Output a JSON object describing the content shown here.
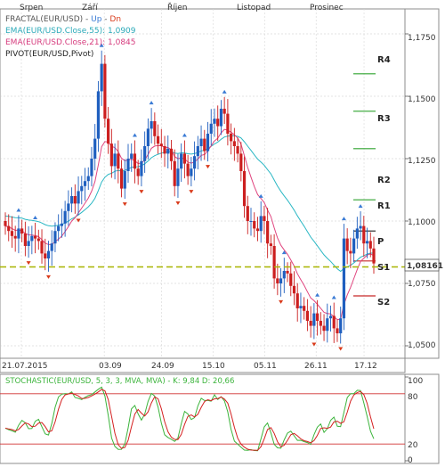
{
  "legend": {
    "fractal": "FRACTAL(EUR/USD) - ",
    "fractal_up": "Up",
    "fractal_dn": "Dn",
    "ema55": "EMA(EUR/USD.Close,55): 1,0909",
    "ema21": "EMA(EUR/USD.Close,21): 1,0845",
    "pivot": "PIVOT(EUR/USD,Pivot)"
  },
  "months": [
    "Srpen",
    "Září",
    "Říjen",
    "Listopad",
    "Prosinec"
  ],
  "dates": [
    "21.07.2015",
    "03.09",
    "24.09",
    "15.10",
    "05.11",
    "26.11",
    "17.12"
  ],
  "price_ticks": [
    "1,1750",
    "1,1500",
    "1,1250",
    "1,1000",
    "1,0750",
    "1,0500"
  ],
  "current_price": "1,08161",
  "pivot_labels": [
    "R4",
    "R3",
    "R2",
    "R1",
    "P",
    "S1",
    "S2"
  ],
  "stoch_legend": "STOCHASTIC(EUR/USD, 5, 3, 3, MVA, MVA) - K: 9,84 D: 20,66",
  "stoch_ticks": [
    "100",
    "80",
    "20",
    "0"
  ],
  "colors": {
    "up_candle": "#1f5fbf",
    "down_candle": "#cc1f1f",
    "ema55": "#2ab7c4",
    "ema21": "#e0457f",
    "pivot": "#2fa32f",
    "current_line": "#a8b400",
    "stoch_k": "#3cb43c",
    "stoch_d": "#d42020",
    "stoch_level": "#d03030",
    "fractal_up": "#3a7bd5",
    "fractal_dn": "#d93a1a"
  },
  "chart_data": {
    "type": "candlestick",
    "instrument": "EUR/USD",
    "ylim": [
      1.045,
      1.185
    ],
    "x_start": "2015-07-21",
    "x_end": "2015-12-22",
    "pivot_levels": {
      "R4": 1.159,
      "R3": 1.144,
      "R2": 1.129,
      "R1": 1.1085,
      "P": 1.096,
      "S1": 1.084,
      "S2": 1.07
    },
    "current_price": 1.08161,
    "ema55_last": 1.0909,
    "ema21_last": 1.0845,
    "closes": [
      1.098,
      1.096,
      1.094,
      1.093,
      1.097,
      1.095,
      1.09,
      1.092,
      1.094,
      1.093,
      1.092,
      1.087,
      1.085,
      1.088,
      1.091,
      1.096,
      1.098,
      1.099,
      1.104,
      1.107,
      1.11,
      1.107,
      1.112,
      1.114,
      1.116,
      1.118,
      1.125,
      1.133,
      1.152,
      1.163,
      1.141,
      1.131,
      1.122,
      1.127,
      1.121,
      1.113,
      1.12,
      1.125,
      1.127,
      1.121,
      1.118,
      1.124,
      1.13,
      1.137,
      1.14,
      1.134,
      1.131,
      1.13,
      1.127,
      1.129,
      1.124,
      1.114,
      1.121,
      1.127,
      1.123,
      1.118,
      1.121,
      1.126,
      1.13,
      1.133,
      1.128,
      1.135,
      1.139,
      1.141,
      1.138,
      1.145,
      1.143,
      1.135,
      1.132,
      1.13,
      1.127,
      1.12,
      1.106,
      1.1,
      1.1,
      1.097,
      1.096,
      1.102,
      1.1,
      1.091,
      1.09,
      1.077,
      1.075,
      1.077,
      1.08,
      1.079,
      1.074,
      1.071,
      1.065,
      1.066,
      1.064,
      1.06,
      1.058,
      1.063,
      1.06,
      1.058,
      1.056,
      1.061,
      1.062,
      1.057,
      1.055,
      1.061,
      1.093,
      1.088,
      1.087,
      1.093,
      1.097,
      1.098,
      1.091,
      1.092,
      1.089,
      1.083
    ],
    "stochastic": {
      "k_last": 9.84,
      "d_last": 20.66,
      "levels": [
        80,
        20
      ],
      "ylim": [
        0,
        100
      ]
    }
  }
}
